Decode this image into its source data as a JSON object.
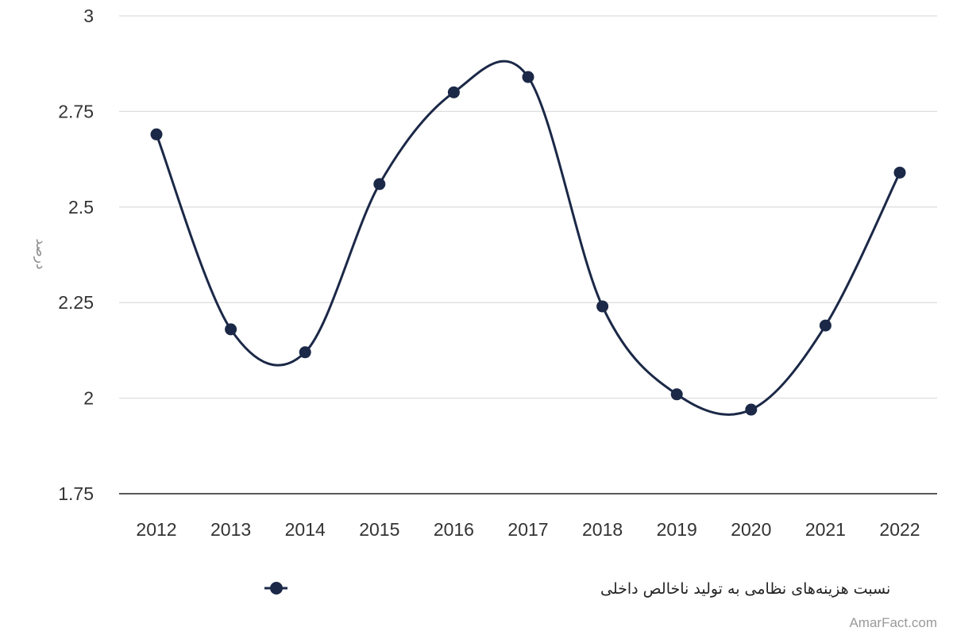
{
  "chart_data": {
    "type": "line",
    "categories": [
      "2012",
      "2013",
      "2014",
      "2015",
      "2016",
      "2017",
      "2018",
      "2019",
      "2020",
      "2021",
      "2022"
    ],
    "series": [
      {
        "name": "نسبت هزینه‌های نظامی به تولید ناخالص داخلی",
        "values": [
          2.69,
          2.18,
          2.12,
          2.56,
          2.8,
          2.84,
          2.24,
          2.01,
          1.97,
          2.19,
          2.59
        ],
        "color": "#1b2847"
      }
    ],
    "ylabel": "درصد",
    "ylim": [
      1.75,
      3
    ],
    "yticks": [
      1.75,
      2,
      2.25,
      2.5,
      2.75,
      3
    ],
    "ytick_labels": [
      "1.75",
      "2",
      "2.25",
      "2.5",
      "2.75",
      "3"
    ],
    "grid": true,
    "legend_position": "bottom",
    "smooth": true
  },
  "watermark": "AmarFact.com"
}
